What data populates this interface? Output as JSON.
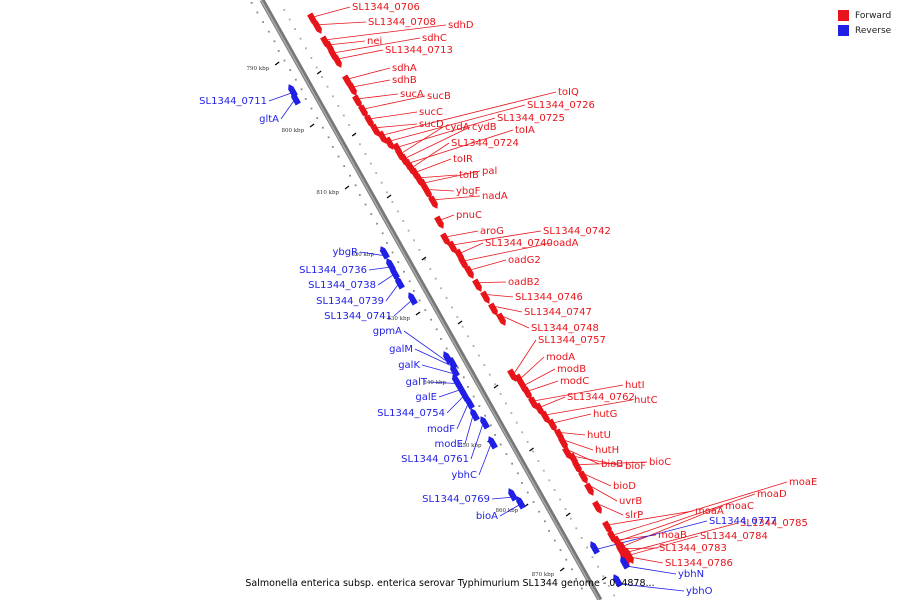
{
  "legend": {
    "forward_label": "Forward",
    "reverse_label": "Reverse",
    "forward_color": "#e8141b",
    "reverse_color": "#1f1fe6"
  },
  "caption": "Salmonella enterica subsp. enterica serovar Typhimurium SL1344 genome - 0..4878...",
  "scale_ticks": [
    "790 kbp",
    "800 kbp",
    "810 kbp",
    "820 kbp",
    "830 kbp",
    "840 kbp",
    "850 kbp",
    "860 kbp",
    "870 kbp"
  ],
  "forward_genes": [
    "SL1344_0706",
    "SL1344_0708",
    "sdhD",
    "nei",
    "sdhC",
    "SL1344_0713",
    "sdhA",
    "sdhB",
    "sucA",
    "sucB",
    "sucC",
    "sucD",
    "toIQ",
    "SL1344_0726",
    "SL1344_0725",
    "cydA",
    "cydB",
    "toIA",
    "SL1344_0724",
    "toIR",
    "toIB",
    "pal",
    "ybgF",
    "nadA",
    "pnuC",
    "aroG",
    "SL1344_0742",
    "SL1344_0740",
    "oadA",
    "oadG2",
    "oadB2",
    "SL1344_0746",
    "SL1344_0747",
    "SL1344_0748",
    "SL1344_0757",
    "modA",
    "modB",
    "modC",
    "hutI",
    "SL1344_0762",
    "hutC",
    "hutG",
    "hutU",
    "hutH",
    "bioB",
    "bioF",
    "bioC",
    "bioD",
    "moaE",
    "uvrB",
    "moaD",
    "moaC",
    "moaA",
    "slrP",
    "SL1344_0785",
    "moaB",
    "SL1344_0784",
    "SL1344_0783",
    "SL1344_0786"
  ],
  "reverse_genes": [
    "SL1344_0711",
    "gltA",
    "ybgR",
    "SL1344_0736",
    "SL1344_0738",
    "SL1344_0739",
    "SL1344_0741",
    "gpmA",
    "galM",
    "galK",
    "galT",
    "galE",
    "SL1344_0754",
    "modF",
    "modE",
    "SL1344_0761",
    "ybhC",
    "SL1344_0769",
    "bioA",
    "SL1344_0777",
    "ybhN",
    "ybhO"
  ]
}
